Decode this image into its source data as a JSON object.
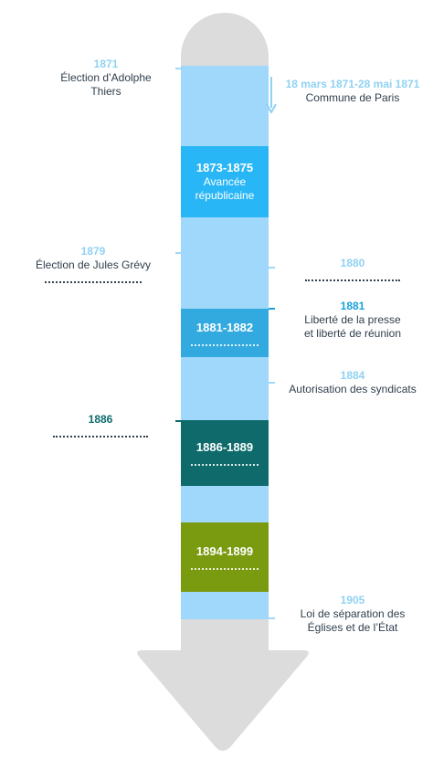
{
  "colors": {
    "arrow_gray": "#dcdcdc",
    "bar_blue": "#9fd8fb",
    "year_light": "#90d2f3",
    "year_mid": "#1aa3d8",
    "year_dark": "#0f6b6b",
    "box_1873": "#29b6f6",
    "box_1881": "#33aadf",
    "box_1886": "#0f6b6b",
    "box_1894": "#7a9a10",
    "text_dark": "#2f3e4c"
  },
  "periods": [
    {
      "id": "1873",
      "label": "1873-1875",
      "desc_line1": "Avancée",
      "desc_line2": "républicaine"
    },
    {
      "id": "1881",
      "label": "1881-1882",
      "desc_line1": "",
      "desc_line2": ""
    },
    {
      "id": "1886",
      "label": "1886-1889",
      "desc_line1": "",
      "desc_line2": ""
    },
    {
      "id": "1894",
      "label": "1894-1899",
      "desc_line1": "",
      "desc_line2": ""
    }
  ],
  "events_left": [
    {
      "year": "1871",
      "line1": "Élection d’Adolphe",
      "line2": "Thiers"
    },
    {
      "year": "1879",
      "line1": "Élection de Jules Grévy",
      "line2": ""
    },
    {
      "year": "1886",
      "line1": "",
      "line2": ""
    }
  ],
  "events_right": [
    {
      "year": "18 mars 1871-28 mai 1871",
      "line1": "Commune de Paris",
      "line2": ""
    },
    {
      "year": "1880",
      "line1": "",
      "line2": ""
    },
    {
      "year": "1881",
      "line1": "Liberté de la presse",
      "line2": "et liberté de réunion"
    },
    {
      "year": "1884",
      "line1": "Autorisation des syndicats",
      "line2": ""
    },
    {
      "year": "1905",
      "line1": "Loi de séparation des",
      "line2": "Églises et de l’État"
    }
  ]
}
